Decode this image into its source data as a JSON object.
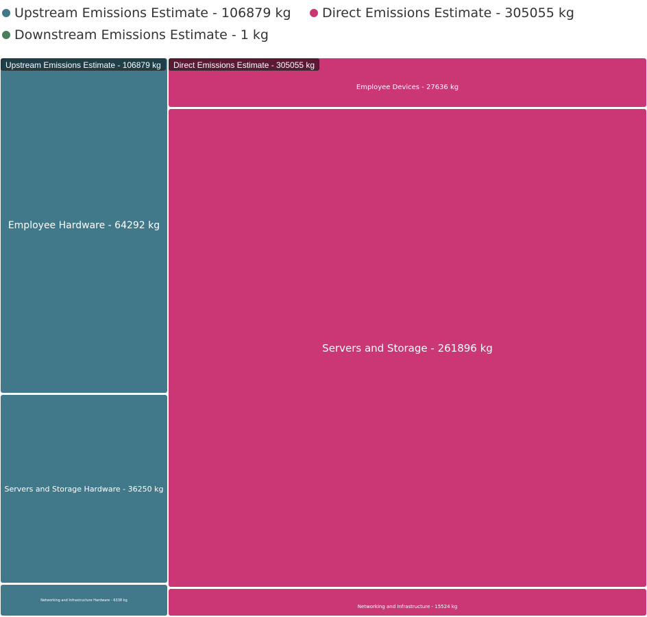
{
  "chart_data": {
    "type": "treemap",
    "groups": [
      {
        "name": "Upstream Emissions Estimate",
        "label": "Upstream Emissions Estimate - 106879 kg",
        "value": 106879,
        "color": "#41798a",
        "children": [
          {
            "label": "Employee Hardware - 64292 kg",
            "value": 64292
          },
          {
            "label": "Servers and Storage Hardware - 36250 kg",
            "value": 36250
          },
          {
            "label": "Networking and Infrastructure Hardware - 6338 kg",
            "value": 6338
          }
        ]
      },
      {
        "name": "Direct Emissions Estimate",
        "label": "Direct Emissions Estimate - 305055 kg",
        "value": 305055,
        "color": "#ca3774",
        "children": [
          {
            "label": "Employee Devices - 27636 kg",
            "value": 27636
          },
          {
            "label": "Servers and Storage - 261896 kg",
            "value": 261896
          },
          {
            "label": "Networking and Infrastructure - 15524 kg",
            "value": 15524
          }
        ]
      },
      {
        "name": "Downstream Emissions Estimate",
        "label": "Downstream Emissions Estimate - 1 kg",
        "value": 1,
        "color": "#4a7e5a",
        "children": []
      }
    ],
    "legend_position": "top-left"
  },
  "colors": {
    "upstream": "#41798a",
    "direct": "#ca3774",
    "downstream": "#4a7e5a",
    "upstream_label_bg": "#1f3e47",
    "direct_label_bg": "#5a1a35"
  }
}
